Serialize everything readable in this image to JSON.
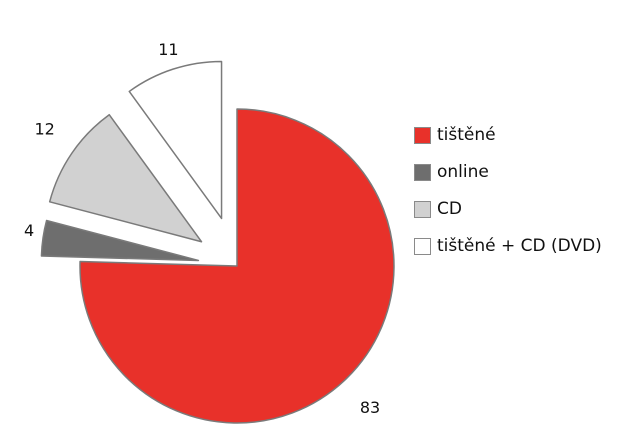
{
  "chart_data": {
    "type": "pie",
    "exploded": true,
    "legend_position": "right",
    "slices": [
      {
        "label": "tištěné",
        "value": 83,
        "value_label": "83",
        "color": "#e8312a"
      },
      {
        "label": "online",
        "value": 4,
        "value_label": "4",
        "color": "#6e6e6e"
      },
      {
        "label": "CD",
        "value": 12,
        "value_label": "12",
        "color": "#d1d1d1"
      },
      {
        "label": "tištěné + CD (DVD)",
        "value": 11,
        "value_label": "11",
        "color": "#ffffff"
      }
    ]
  }
}
